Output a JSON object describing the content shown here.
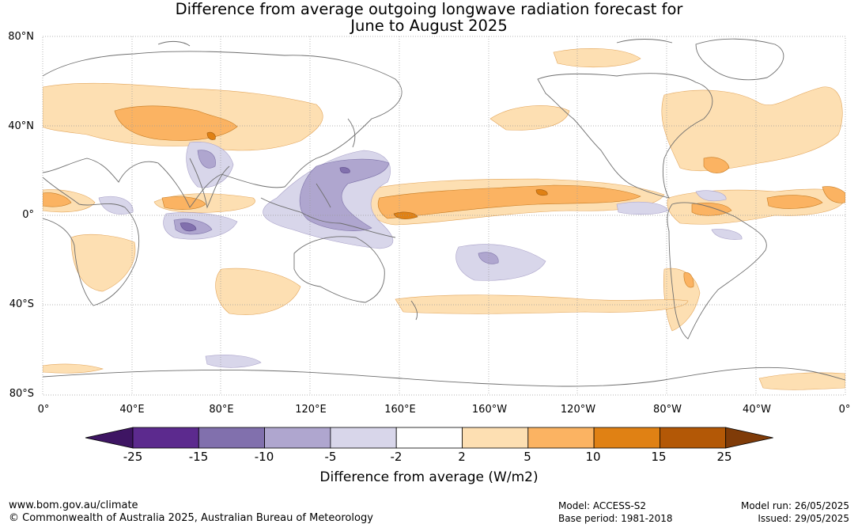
{
  "title_line1": "Difference from average outgoing longwave radiation forecast for",
  "title_line2": "June to August 2025",
  "lat_labels": [
    "80°N",
    "40°N",
    "0°",
    "40°S",
    "80°S"
  ],
  "lon_labels": [
    "0°",
    "40°E",
    "80°E",
    "120°E",
    "160°E",
    "160°W",
    "120°W",
    "80°W",
    "40°W",
    "0°"
  ],
  "colorbar": {
    "ticks": [
      "-25",
      "-15",
      "-10",
      "-5",
      "-2",
      "2",
      "5",
      "10",
      "15",
      "25"
    ],
    "colors": [
      "#3e1563",
      "#5c2a8e",
      "#8170ad",
      "#afa6cf",
      "#d8d6ea",
      "#ffffff",
      "#fddfb2",
      "#fbb362",
      "#e08114",
      "#b35806",
      "#7f3b08"
    ],
    "label": "Difference from average (W/m2)"
  },
  "footer": {
    "url": "www.bom.gov.au/climate",
    "copyright": "© Commonwealth of Australia 2025, Australian Bureau of Meteorology",
    "model": "Model: ACCESS-S2",
    "base_period": "Base period: 1981-2018",
    "model_run": "Model run: 26/05/2025",
    "issued": "Issued: 29/05/2025"
  }
}
